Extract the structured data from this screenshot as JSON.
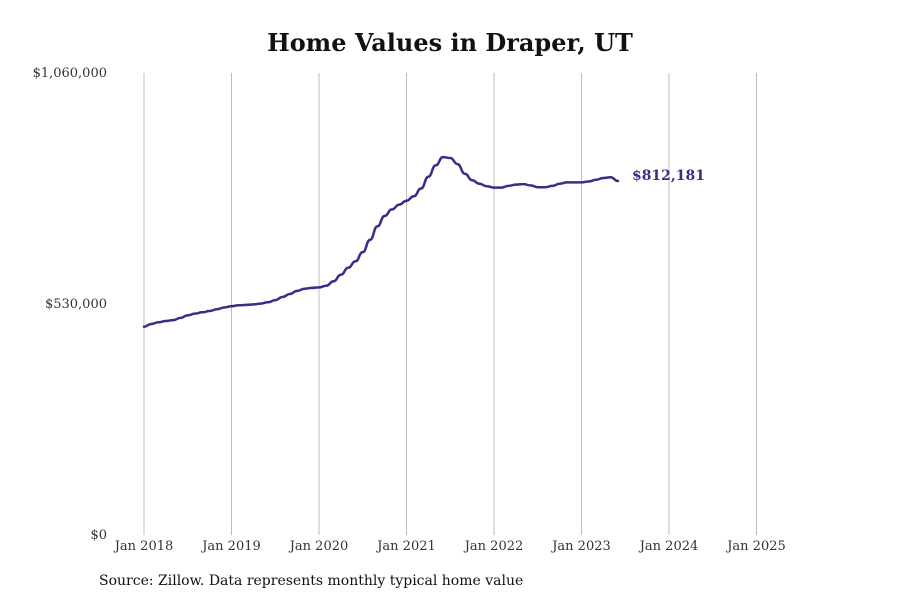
{
  "chart_data": {
    "type": "line",
    "title": "Home Values in Draper, UT",
    "source": "Source: Zillow. Data represents monthly typical home value",
    "ylim": [
      0,
      1060000
    ],
    "y_ticks": [
      {
        "value": 0,
        "label": "$0"
      },
      {
        "value": 530000,
        "label": "$530,000"
      },
      {
        "value": 1060000,
        "label": "$1,060,000"
      }
    ],
    "x_ticks": [
      "Jan 2018",
      "Jan 2019",
      "Jan 2020",
      "Jan 2021",
      "Jan 2022",
      "Jan 2023",
      "Jan 2024",
      "Jan 2025"
    ],
    "grid": "vertical",
    "line_color": "#3a2d86",
    "end_label": "$812,181",
    "x_start": "2018-01",
    "series": [
      {
        "values": [
          478000,
          484000,
          488000,
          491000,
          493000,
          498000,
          504000,
          508000,
          511000,
          514000,
          518000,
          522000,
          525000,
          527000,
          528000,
          529000,
          531000,
          534000,
          539000,
          546000,
          553000,
          560000,
          565000,
          567000,
          568000,
          572000,
          582000,
          597000,
          613000,
          628000,
          649000,
          677000,
          708000,
          732000,
          747000,
          758000,
          767000,
          777000,
          795000,
          822000,
          848000,
          867000,
          865000,
          851000,
          829000,
          814000,
          806000,
          800000,
          797000,
          797000,
          801000,
          804000,
          805000,
          802000,
          798000,
          798000,
          801000,
          806000,
          809000,
          809000,
          809000,
          811000,
          815000,
          819000,
          821000,
          812181
        ]
      }
    ]
  }
}
